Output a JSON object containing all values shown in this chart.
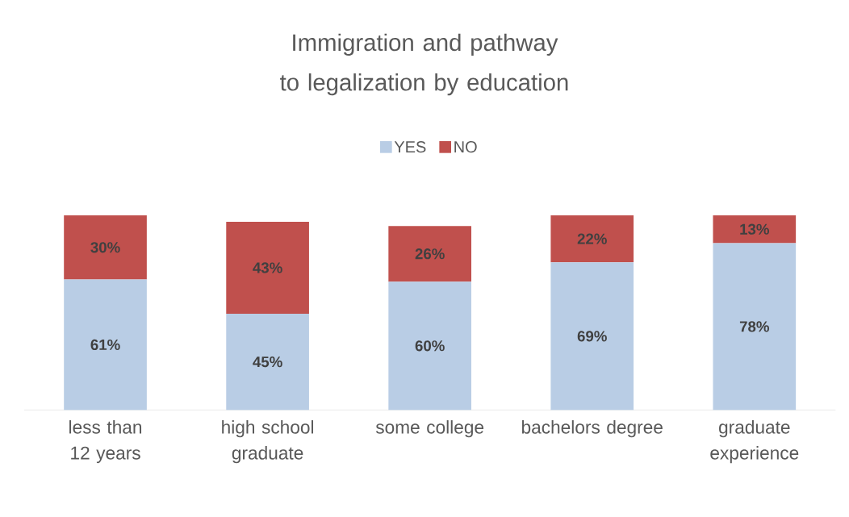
{
  "chart_data": {
    "type": "bar",
    "stacked": true,
    "title": "Immigration and pathway to legalization by education",
    "categories": [
      "less than 12 years",
      "high school graduate",
      "some college",
      "bachelors degree",
      "graduate experience"
    ],
    "series": [
      {
        "name": "YES",
        "color": "#b9cde5",
        "values": [
          61,
          45,
          60,
          69,
          78
        ],
        "value_labels": [
          "61%",
          "45%",
          "60%",
          "69%",
          "78%"
        ]
      },
      {
        "name": "NO",
        "color": "#c0504d",
        "values": [
          30,
          43,
          26,
          22,
          13
        ],
        "value_labels": [
          "30%",
          "43%",
          "26%",
          "22%",
          "13%"
        ]
      }
    ],
    "legend": "top"
  }
}
